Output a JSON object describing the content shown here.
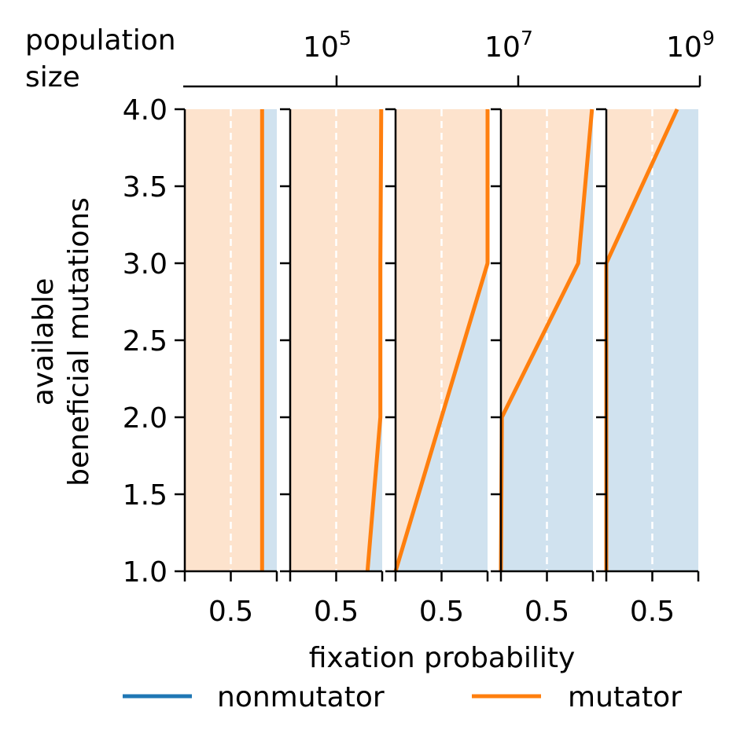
{
  "chart_data": {
    "type": "area",
    "top_axis": {
      "label_line1": "population",
      "label_line2": "size",
      "ticks": [
        {
          "base": "10",
          "exp": "5"
        },
        {
          "base": "10",
          "exp": "7"
        },
        {
          "base": "10",
          "exp": "9"
        }
      ]
    },
    "ylabel_line1": "available",
    "ylabel_line2": "beneficial mutations",
    "xlabel": "fixation probability",
    "ylim": [
      1.0,
      4.0
    ],
    "yticks": [
      "1.0",
      "1.5",
      "2.0",
      "2.5",
      "3.0",
      "3.5",
      "4.0"
    ],
    "xlim": [
      0,
      1
    ],
    "xtick_label": "0.5",
    "legend": [
      {
        "label": "nonmutator",
        "color": "#1f77b4"
      },
      {
        "label": "mutator",
        "color": "#ff7f0e"
      }
    ],
    "colors": {
      "mutator": "#ff7f0e",
      "nonmutator": "#1f77b4",
      "mutator_fill": "#fde3cd",
      "nonmutator_fill": "#d0e2ef"
    },
    "panels": [
      {
        "series": [
          {
            "name": "mutator",
            "y": [
              1,
              2,
              3,
              4
            ],
            "x": [
              0.84,
              0.84,
              0.84,
              0.84
            ]
          }
        ]
      },
      {
        "series": [
          {
            "name": "mutator",
            "y": [
              1,
              2,
              3,
              4
            ],
            "x": [
              0.84,
              0.98,
              0.98,
              0.99
            ]
          }
        ]
      },
      {
        "series": [
          {
            "name": "mutator",
            "y": [
              1,
              2,
              3,
              4
            ],
            "x": [
              0.0,
              0.5,
              1.0,
              1.0
            ]
          }
        ]
      },
      {
        "series": [
          {
            "name": "mutator",
            "y": [
              1,
              2,
              3,
              4
            ],
            "x": [
              0.0,
              0.01,
              0.84,
              0.99
            ]
          }
        ]
      },
      {
        "series": [
          {
            "name": "mutator",
            "y": [
              1,
              2,
              3,
              4
            ],
            "x": [
              0.0,
              0.0,
              0.0,
              0.77
            ]
          }
        ]
      }
    ]
  }
}
